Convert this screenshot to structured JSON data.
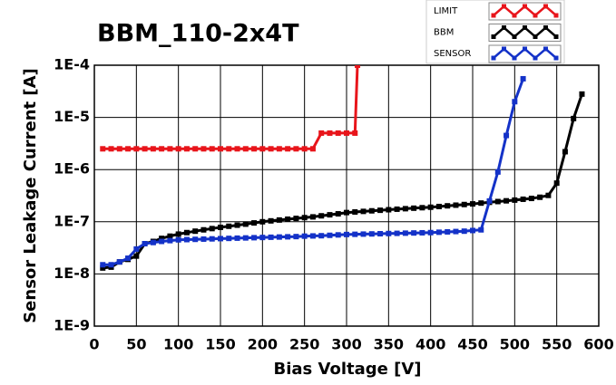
{
  "chart_data": {
    "type": "line",
    "title": "BBM_110-2x4T",
    "xlabel": "Bias Voltage [V]",
    "ylabel": "Sensor Leakage Current [A]",
    "xlim": [
      0,
      600
    ],
    "xticks": [
      0,
      50,
      100,
      150,
      200,
      250,
      300,
      350,
      400,
      450,
      500,
      550,
      600
    ],
    "ylim": [
      1e-09,
      0.0001
    ],
    "log_y": true,
    "grid": true,
    "yticks": [
      {
        "value": 1e-09,
        "label": "1E-9"
      },
      {
        "value": 1e-08,
        "label": "1E-8"
      },
      {
        "value": 1e-07,
        "label": "1E-7"
      },
      {
        "value": 1e-06,
        "label": "1E-6"
      },
      {
        "value": 1e-05,
        "label": "1E-5"
      },
      {
        "value": 0.0001,
        "label": "1E-4"
      }
    ],
    "series": [
      {
        "name": "LIMIT",
        "color": "#e8151b",
        "x": [
          10,
          20,
          30,
          40,
          50,
          60,
          70,
          80,
          90,
          100,
          110,
          120,
          130,
          140,
          150,
          160,
          170,
          180,
          190,
          200,
          210,
          220,
          230,
          240,
          250,
          260,
          270,
          280,
          290,
          300,
          310,
          313
        ],
        "values": [
          2.5e-06,
          2.5e-06,
          2.5e-06,
          2.5e-06,
          2.5e-06,
          2.5e-06,
          2.5e-06,
          2.5e-06,
          2.5e-06,
          2.5e-06,
          2.5e-06,
          2.5e-06,
          2.5e-06,
          2.5e-06,
          2.5e-06,
          2.5e-06,
          2.5e-06,
          2.5e-06,
          2.5e-06,
          2.5e-06,
          2.5e-06,
          2.5e-06,
          2.5e-06,
          2.5e-06,
          2.5e-06,
          2.5e-06,
          5e-06,
          5e-06,
          5e-06,
          5e-06,
          5e-06,
          0.0001
        ]
      },
      {
        "name": "BBM",
        "color": "#000000",
        "x": [
          10,
          20,
          30,
          40,
          50,
          60,
          70,
          80,
          90,
          100,
          110,
          120,
          130,
          140,
          150,
          160,
          170,
          180,
          190,
          200,
          210,
          220,
          230,
          240,
          250,
          260,
          270,
          280,
          290,
          300,
          310,
          320,
          330,
          340,
          350,
          360,
          370,
          380,
          390,
          400,
          410,
          420,
          430,
          440,
          450,
          460,
          470,
          480,
          490,
          500,
          510,
          520,
          530,
          540,
          550,
          560,
          570,
          580
        ],
        "values": [
          1.3e-08,
          1.35e-08,
          1.7e-08,
          1.9e-08,
          2.2e-08,
          3.8e-08,
          4.2e-08,
          4.8e-08,
          5.3e-08,
          5.8e-08,
          6.2e-08,
          6.6e-08,
          7e-08,
          7.4e-08,
          7.8e-08,
          8.2e-08,
          8.6e-08,
          9e-08,
          9.5e-08,
          1e-07,
          1.04e-07,
          1.08e-07,
          1.12e-07,
          1.16e-07,
          1.2e-07,
          1.24e-07,
          1.3e-07,
          1.36e-07,
          1.42e-07,
          1.5e-07,
          1.54e-07,
          1.58e-07,
          1.62e-07,
          1.66e-07,
          1.7e-07,
          1.74e-07,
          1.78e-07,
          1.82e-07,
          1.86e-07,
          1.9e-07,
          1.96e-07,
          2.02e-07,
          2.08e-07,
          2.14e-07,
          2.2e-07,
          2.28e-07,
          2.36e-07,
          2.44e-07,
          2.52e-07,
          2.6e-07,
          2.7e-07,
          2.8e-07,
          2.95e-07,
          3.2e-07,
          5.5e-07,
          2.2e-06,
          9.5e-06,
          2.8e-05
        ]
      },
      {
        "name": "SENSOR",
        "color": "#1432c8",
        "x": [
          10,
          20,
          30,
          40,
          50,
          60,
          70,
          80,
          90,
          100,
          110,
          120,
          130,
          140,
          150,
          160,
          170,
          180,
          190,
          200,
          210,
          220,
          230,
          240,
          250,
          260,
          270,
          280,
          290,
          300,
          310,
          320,
          330,
          340,
          350,
          360,
          370,
          380,
          390,
          400,
          410,
          420,
          430,
          440,
          450,
          460,
          470,
          480,
          490,
          500,
          510
        ],
        "values": [
          1.5e-08,
          1.5e-08,
          1.7e-08,
          2e-08,
          3e-08,
          3.8e-08,
          4e-08,
          4.2e-08,
          4.35e-08,
          4.5e-08,
          4.55e-08,
          4.6e-08,
          4.65e-08,
          4.7e-08,
          4.75e-08,
          4.8e-08,
          4.85e-08,
          4.9e-08,
          4.95e-08,
          5e-08,
          5.05e-08,
          5.1e-08,
          5.15e-08,
          5.2e-08,
          5.3e-08,
          5.35e-08,
          5.4e-08,
          5.5e-08,
          5.6e-08,
          5.7e-08,
          5.75e-08,
          5.8e-08,
          5.85e-08,
          5.9e-08,
          5.95e-08,
          6e-08,
          6.05e-08,
          6.1e-08,
          6.15e-08,
          6.2e-08,
          6.3e-08,
          6.4e-08,
          6.5e-08,
          6.6e-08,
          6.8e-08,
          7e-08,
          2.5e-07,
          9e-07,
          4.5e-06,
          2e-05,
          5.5e-05
        ]
      }
    ]
  }
}
